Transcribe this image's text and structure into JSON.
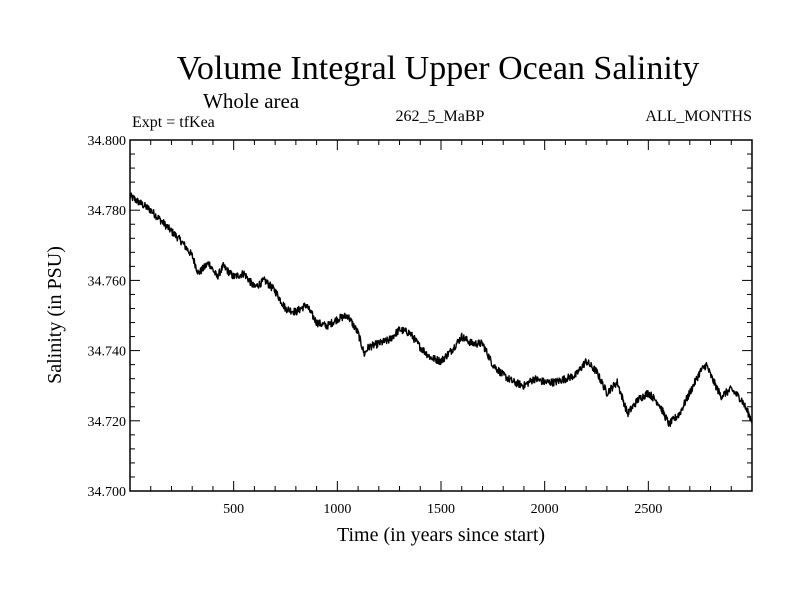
{
  "chart_data": {
    "type": "line",
    "title": "Volume Integral Upper Ocean Salinity",
    "subtitle": "Whole area",
    "header_left": "Expt = tfKea",
    "header_center": "262_5_MaBP",
    "header_right": "ALL_MONTHS",
    "xlabel": "Time (in years since start)",
    "ylabel": "Salinity (in PSU)",
    "xlim": [
      0,
      3000
    ],
    "ylim": [
      34.7,
      34.8
    ],
    "x_ticks": [
      500,
      1000,
      1500,
      2000,
      2500
    ],
    "x_tick_labels": [
      "500",
      "1000",
      "1500",
      "2000",
      "2500"
    ],
    "y_ticks": [
      34.7,
      34.72,
      34.74,
      34.76,
      34.78,
      34.8
    ],
    "y_tick_labels": [
      "34.700",
      "34.720",
      "34.740",
      "34.760",
      "34.780",
      "34.800"
    ],
    "grid": false,
    "series": [
      {
        "color": "#000000",
        "x": [
          0,
          50,
          100,
          150,
          200,
          250,
          300,
          330,
          380,
          420,
          450,
          500,
          550,
          600,
          650,
          700,
          750,
          800,
          850,
          900,
          950,
          1000,
          1050,
          1100,
          1130,
          1150,
          1200,
          1250,
          1300,
          1350,
          1400,
          1450,
          1500,
          1550,
          1600,
          1650,
          1700,
          1750,
          1800,
          1850,
          1900,
          1950,
          2000,
          2050,
          2100,
          2150,
          2200,
          2250,
          2300,
          2350,
          2400,
          2450,
          2500,
          2550,
          2600,
          2650,
          2700,
          2750,
          2780,
          2800,
          2850,
          2900,
          2950,
          3000
        ],
        "y": [
          34.784,
          34.782,
          34.78,
          34.777,
          34.774,
          34.771,
          34.767,
          34.762,
          34.765,
          34.761,
          34.764,
          34.761,
          34.762,
          34.758,
          34.76,
          34.757,
          34.752,
          34.751,
          34.753,
          34.748,
          34.747,
          34.749,
          34.75,
          34.745,
          34.739,
          34.741,
          34.742,
          34.743,
          34.746,
          34.745,
          34.741,
          34.738,
          34.737,
          34.74,
          34.744,
          34.742,
          34.742,
          34.736,
          34.733,
          34.731,
          34.73,
          34.732,
          34.731,
          34.731,
          34.732,
          34.733,
          34.737,
          34.734,
          34.728,
          34.731,
          34.722,
          34.726,
          34.728,
          34.725,
          34.719,
          34.722,
          34.728,
          34.734,
          34.736,
          34.733,
          34.727,
          34.729,
          34.726,
          34.72
        ]
      }
    ]
  }
}
